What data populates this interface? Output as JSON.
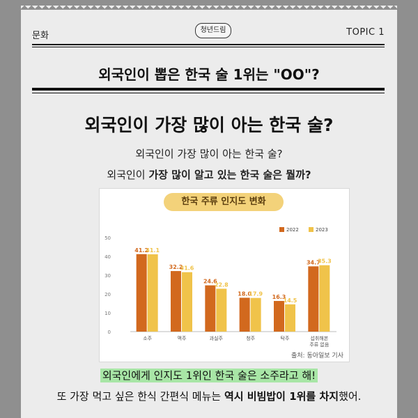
{
  "header": {
    "category": "문화",
    "badge": "청년드림",
    "topic": "TOPIC 1"
  },
  "topic_title": "외국인이 뽑은 한국 술 1위는 \"OO\"?",
  "main_title": "외국인이 가장 많이 아는 한국 술?",
  "sub1": "외국인이 가장 많이 아는 한국 술?",
  "sub2": {
    "prefix": "외국인이 ",
    "bold": "가장 많이 알고 있는 한국 술은 뭘까?"
  },
  "chart_data": {
    "type": "bar",
    "title": "한국 주류 인지도 변화",
    "categories": [
      "소주",
      "맥주",
      "과실주",
      "청주",
      "탁주",
      "섭취해본 주류 없음"
    ],
    "category_lines": [
      [
        "소주"
      ],
      [
        "맥주"
      ],
      [
        "과실주"
      ],
      [
        "청주"
      ],
      [
        "탁주"
      ],
      [
        "섭취해본",
        "주류 없음"
      ]
    ],
    "series": [
      {
        "name": "2022",
        "values": [
          41.2,
          32.2,
          24.6,
          18.0,
          16.3,
          34.7
        ],
        "color": "#d2691e"
      },
      {
        "name": "2023",
        "values": [
          41.1,
          31.6,
          22.8,
          17.9,
          14.5,
          35.3
        ],
        "color": "#f0c34a"
      }
    ],
    "value_labels": [
      [
        "41.2",
        "32.2",
        "24.6",
        "18.0",
        "16.3",
        "34.7"
      ],
      [
        "41.1",
        "31.6",
        "22.8",
        "17.9",
        "14.5",
        "35.3"
      ]
    ],
    "yticks": [
      "0",
      "10",
      "20",
      "30",
      "40",
      "50"
    ],
    "ylim": [
      0,
      50
    ],
    "legend_position": "top-right",
    "grid": false,
    "source": "출처: 동아일보 기사"
  },
  "highlight_line": "외국인에게 인지도 1위인 한국 술은 소주라고 해!",
  "last_line": {
    "prefix": "또 가장 먹고 싶은 한식 간편식 메뉴는 ",
    "bold": "역시 비빔밥이 1위를 차지",
    "suffix": "했어."
  }
}
